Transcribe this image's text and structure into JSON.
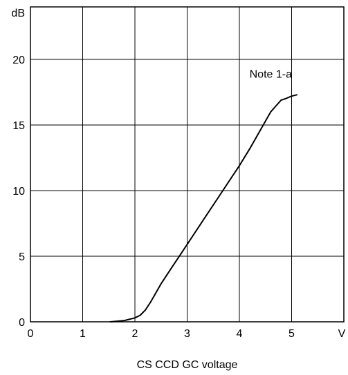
{
  "chart_data": {
    "type": "line",
    "title": "",
    "xlabel": "CS CCD GC voltage",
    "ylabel": "",
    "x_unit": "V",
    "y_unit": "dB",
    "xlim": [
      0,
      6
    ],
    "ylim": [
      0,
      24
    ],
    "x_ticks": [
      0,
      1,
      2,
      3,
      4,
      5
    ],
    "y_ticks": [
      0,
      5,
      10,
      15,
      20
    ],
    "grid": true,
    "series": [
      {
        "name": "",
        "x": [
          1.53,
          1.8,
          2.0,
          2.1,
          2.2,
          2.3,
          2.4,
          2.5,
          2.7,
          3.0,
          3.3,
          3.6,
          3.9,
          4.0,
          4.2,
          4.4,
          4.6,
          4.8,
          4.88,
          5.0,
          5.1
        ],
        "y": [
          0.0,
          0.1,
          0.3,
          0.5,
          0.9,
          1.5,
          2.2,
          2.9,
          4.1,
          5.9,
          7.7,
          9.5,
          11.3,
          11.9,
          13.2,
          14.6,
          16.0,
          16.9,
          17.0,
          17.2,
          17.3
        ]
      }
    ],
    "annotations": [
      {
        "text": "Note 1-a",
        "x": 4.6,
        "y": 18.6
      }
    ]
  }
}
